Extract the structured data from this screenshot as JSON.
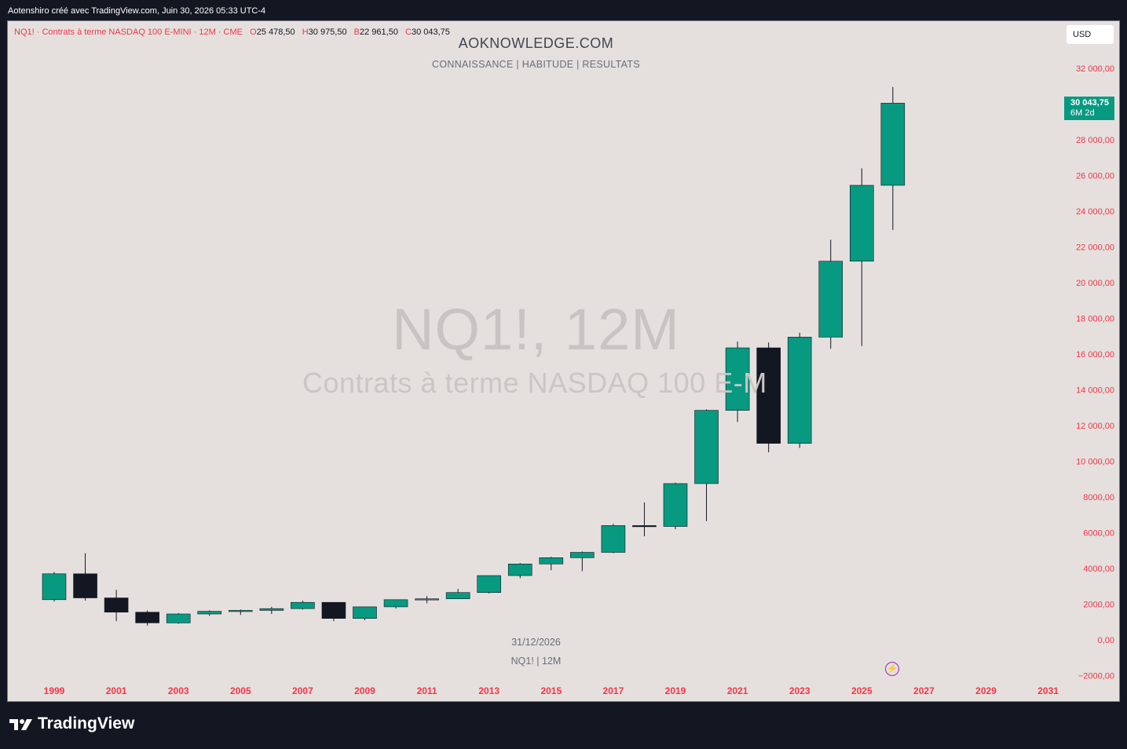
{
  "header": {
    "attribution": "Aotenshiro créé avec TradingView.com, Juin 30, 2026 05:33 UTC-4"
  },
  "legend": {
    "symbol_line": "NQ1! · Contrats à terme NASDAQ 100 E-MINI · 12M · CME",
    "o_label": "O",
    "o_value": "25 478,50",
    "h_label": "H",
    "h_value": "30 975,50",
    "l_label": "B",
    "l_value": "22 961,50",
    "c_label": "C",
    "c_value": "30 043,75"
  },
  "overlay": {
    "title": "AOKNOWLEDGE.COM",
    "subtitle": "CONNAISSANCE |   HABITUDE  |  RESULTATS",
    "watermark_symbol": "NQ1!, 12M",
    "watermark_name": "Contrats à terme NASDAQ 100 E-MINI",
    "footer_date": "31/12/2026",
    "footer_symbol": "NQ1!  |  12M"
  },
  "currency": "USD",
  "price_tag": {
    "price": "30 043,75",
    "countdown": "6M 2d"
  },
  "brand": {
    "logo_text": "TradingView",
    "logo_icon": "tradingview-logo-icon"
  },
  "colors": {
    "up": "#089981",
    "down": "#131722",
    "axis_text": "#f23645",
    "background": "#e5e0de"
  },
  "chart_data": {
    "type": "candlestick",
    "interval": "12M",
    "ylim": [
      -2000,
      33000
    ],
    "y_ticks": [
      "32 000,00",
      "28 000,00",
      "26 000,00",
      "24 000,00",
      "22 000,00",
      "20 000,00",
      "18 000,00",
      "16 000,00",
      "14 000,00",
      "12 000,00",
      "10 000,00",
      "8000,00",
      "6000,00",
      "4000,00",
      "2000,00",
      "0,00",
      "−2000,00"
    ],
    "y_tick_values": [
      32000,
      28000,
      26000,
      24000,
      22000,
      20000,
      18000,
      16000,
      14000,
      12000,
      10000,
      8000,
      6000,
      4000,
      2000,
      0,
      -2000
    ],
    "x_ticks": [
      "1999",
      "2001",
      "2003",
      "2005",
      "2007",
      "2009",
      "2011",
      "2013",
      "2015",
      "2017",
      "2019",
      "2021",
      "2023",
      "2025",
      "2027",
      "2029",
      "2031"
    ],
    "candles": [
      {
        "year": 1999,
        "open": 2250,
        "high": 3800,
        "low": 2150,
        "close": 3700
      },
      {
        "year": 2000,
        "open": 3700,
        "high": 4850,
        "low": 2200,
        "close": 2350
      },
      {
        "year": 2001,
        "open": 2350,
        "high": 2800,
        "low": 1050,
        "close": 1550
      },
      {
        "year": 2002,
        "open": 1550,
        "high": 1650,
        "low": 800,
        "close": 950
      },
      {
        "year": 2003,
        "open": 950,
        "high": 1500,
        "low": 900,
        "close": 1450
      },
      {
        "year": 2004,
        "open": 1450,
        "high": 1650,
        "low": 1350,
        "close": 1600
      },
      {
        "year": 2005,
        "open": 1600,
        "high": 1700,
        "low": 1400,
        "close": 1650
      },
      {
        "year": 2006,
        "open": 1650,
        "high": 1850,
        "low": 1450,
        "close": 1750
      },
      {
        "year": 2007,
        "open": 1750,
        "high": 2200,
        "low": 1700,
        "close": 2100
      },
      {
        "year": 2008,
        "open": 2100,
        "high": 2100,
        "low": 1050,
        "close": 1200
      },
      {
        "year": 2009,
        "open": 1200,
        "high": 1850,
        "low": 1100,
        "close": 1850
      },
      {
        "year": 2010,
        "open": 1850,
        "high": 2250,
        "low": 1750,
        "close": 2250
      },
      {
        "year": 2011,
        "open": 2250,
        "high": 2450,
        "low": 2050,
        "close": 2300
      },
      {
        "year": 2012,
        "open": 2300,
        "high": 2850,
        "low": 2300,
        "close": 2650
      },
      {
        "year": 2013,
        "open": 2650,
        "high": 3600,
        "low": 2600,
        "close": 3600
      },
      {
        "year": 2014,
        "open": 3600,
        "high": 4300,
        "low": 3450,
        "close": 4250
      },
      {
        "year": 2015,
        "open": 4250,
        "high": 4650,
        "low": 3900,
        "close": 4600
      },
      {
        "year": 2016,
        "open": 4600,
        "high": 4950,
        "low": 3850,
        "close": 4900
      },
      {
        "year": 2017,
        "open": 4900,
        "high": 6500,
        "low": 4850,
        "close": 6400
      },
      {
        "year": 2018,
        "open": 6400,
        "high": 7700,
        "low": 5800,
        "close": 6350
      },
      {
        "year": 2019,
        "open": 6350,
        "high": 8800,
        "low": 6200,
        "close": 8750
      },
      {
        "year": 2020,
        "open": 8750,
        "high": 12900,
        "low": 6650,
        "close": 12850
      },
      {
        "year": 2021,
        "open": 12850,
        "high": 16700,
        "low": 12200,
        "close": 16350
      },
      {
        "year": 2022,
        "open": 16350,
        "high": 16650,
        "low": 10500,
        "close": 11000
      },
      {
        "year": 2023,
        "open": 11000,
        "high": 17200,
        "low": 10750,
        "close": 16950
      },
      {
        "year": 2024,
        "open": 16950,
        "high": 22400,
        "low": 16300,
        "close": 21200
      },
      {
        "year": 2025,
        "open": 21200,
        "high": 26400,
        "low": 16450,
        "close": 25450
      },
      {
        "year": 2026,
        "open": 25450,
        "high": 30950,
        "low": 22950,
        "close": 30050
      }
    ]
  }
}
